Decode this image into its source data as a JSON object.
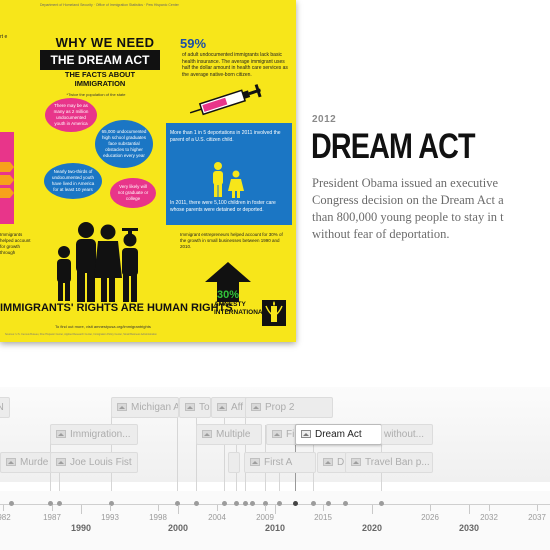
{
  "poster": {
    "top_small_text": "Department of Homeland Security · Office of Immigration Statistics · Pew Hispanic Center",
    "left_cut_text": "rt\ne",
    "heading_line1": "WHY WE NEED",
    "heading_line2": "THE DREAM ACT",
    "heading_line3": "THE FACTS ABOUT IMMIGRATION",
    "stat_percent": "59%",
    "stat_text": "of adult undocumented immigrants lack basic health insurance. The average immigrant uses half the dollar amount in health care services as the average native-born citizen.",
    "bubble_caption": "*Twice the population of the state",
    "bubble1": "There may be as many as 2 million undocumented youth in America",
    "bubble2": "65,000 undocumented high school graduates face substantial obstacles to higher education every year",
    "bubble3": "Nearly two-thirds of undocumented youth have lived in America for at least 10 years",
    "bubble4": "Very likely will not graduate or college",
    "left_mid_text": "Immigrants helped account for growth through",
    "deportation_text": "More than 1 in 5 deportations in 2011 involved the parent of a U.S. citizen child.",
    "foster_text": "In 2011, there were 5,100 children in foster care whose parents were detained or deported.",
    "entrepreneur_text": "Immigrant entrepreneurs helped account for 30% of the growth in small businesses between 1990 and 2010.",
    "arrow_value": "30%",
    "bottom_slogan": "IMMIGRANTS' RIGHTS ARE HUMAN RIGHTS",
    "logo_text": "AMNESTY INTERNATIONAL",
    "footer_text": "To find out more, visit amnestyusa.org/immigrantrights",
    "footer_small": "Sources: U.S. Census Bureau, Pew Hispanic Center, Applied Research Center, Immigration Policy Center, Small Business Administration"
  },
  "event": {
    "year": "2012",
    "title": "DREAM ACT",
    "description_lines": [
      "President Obama issued an executive",
      "Congress decision on the Dream Act a",
      "than 800,000 young people to stay in t",
      "without fear of deportation."
    ]
  },
  "timeline": {
    "flags_row1": [
      "AN",
      "Michigan A",
      "To",
      "Aff",
      "Prop 2"
    ],
    "flags_row2": [
      "Immigration...",
      "Multiple",
      "Fi",
      "Dream Act",
      "without..."
    ],
    "flags_row3": [
      "Murde",
      "Joe Louis Fist",
      "First A",
      "D",
      "Travel Ban p..."
    ],
    "axis_labels": [
      "982",
      "1987",
      "1990",
      "1993",
      "1998",
      "2000",
      "2004",
      "2009",
      "2010",
      "2015",
      "2020",
      "2026",
      "2030",
      "2032",
      "2037"
    ],
    "major_labels": [
      "1990",
      "2000",
      "2010",
      "2020",
      "2030"
    ],
    "active_flag": "Dream Act"
  },
  "colors": {
    "poster_yellow": "#f7e61a",
    "poster_pink": "#e8358a",
    "poster_blue": "#1b76c4",
    "title_text": "#111111",
    "description_text": "#6b6b6b"
  }
}
